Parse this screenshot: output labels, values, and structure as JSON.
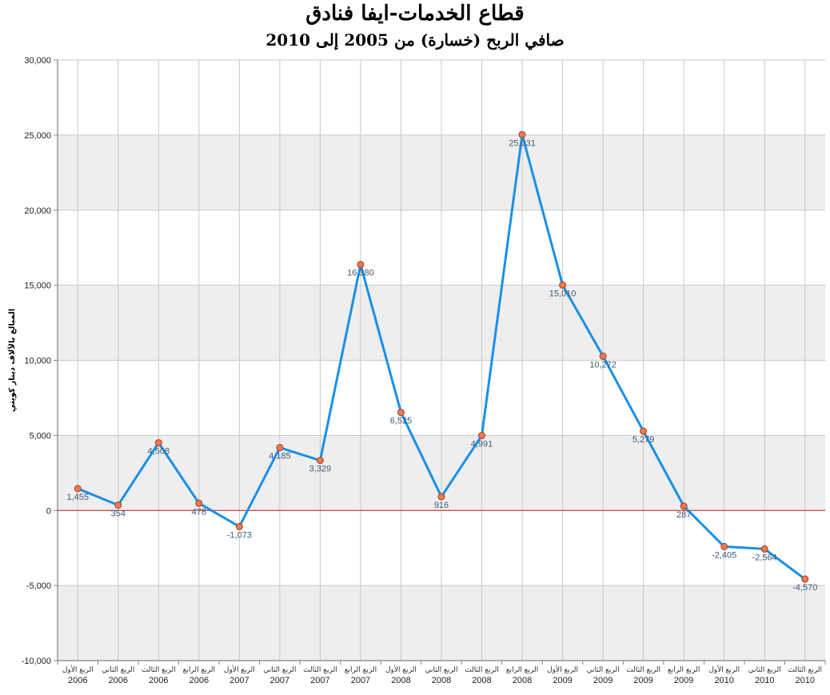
{
  "chart_data": {
    "type": "line",
    "title": "قطاع الخدمات-ايفا فنادق",
    "subtitle": "صافي الربح (خسارة) من 2005 إلى 2010",
    "ylabel": "المبالغ بالآلاف دينار كويتي",
    "xlabel": "",
    "ylim": [
      -10000,
      30000
    ],
    "yticks": [
      "-10,000",
      "-5,000",
      "0",
      "5,000",
      "10,000",
      "15,000",
      "20,000",
      "25,000",
      "30,000"
    ],
    "grid": "on",
    "colors": {
      "line": "#1a90e6",
      "marker": "#f07850",
      "zero_line": "#cc2020",
      "band": "#eeeeee"
    },
    "categories": [
      {
        "quarter": "الربع الأول",
        "year": "2006"
      },
      {
        "quarter": "الربع الثاني",
        "year": "2006"
      },
      {
        "quarter": "الربع الثالث",
        "year": "2006"
      },
      {
        "quarter": "الربع الرابع",
        "year": "2006"
      },
      {
        "quarter": "الربع الأول",
        "year": "2007"
      },
      {
        "quarter": "الربع الثاني",
        "year": "2007"
      },
      {
        "quarter": "الربع الثالث",
        "year": "2007"
      },
      {
        "quarter": "الربع الرابع",
        "year": "2007"
      },
      {
        "quarter": "الربع الأول",
        "year": "2008"
      },
      {
        "quarter": "الربع الثاني",
        "year": "2008"
      },
      {
        "quarter": "الربع الثالث",
        "year": "2008"
      },
      {
        "quarter": "الربع الرابع",
        "year": "2008"
      },
      {
        "quarter": "الربع الأول",
        "year": "2009"
      },
      {
        "quarter": "الربع الثاني",
        "year": "2009"
      },
      {
        "quarter": "الربع الثالث",
        "year": "2009"
      },
      {
        "quarter": "الربع الرابع",
        "year": "2009"
      },
      {
        "quarter": "الربع الأول",
        "year": "2010"
      },
      {
        "quarter": "الربع الثاني",
        "year": "2010"
      },
      {
        "quarter": "الربع الثالث",
        "year": "2010"
      }
    ],
    "values": [
      1455,
      354,
      4508,
      478,
      -1073,
      4185,
      3329,
      16380,
      6525,
      916,
      4991,
      25031,
      15010,
      10272,
      5279,
      287,
      -2405,
      -2564,
      -4570
    ],
    "data_labels": [
      "1,455",
      "354",
      "4,508",
      "478",
      "-1,073",
      "4,185",
      "3,329",
      "16,380",
      "6,525",
      "916",
      "4,991",
      "25,031",
      "15,010",
      "10,272",
      "5,279",
      "287",
      "-2,405",
      "-2,564",
      "-4,570"
    ]
  }
}
